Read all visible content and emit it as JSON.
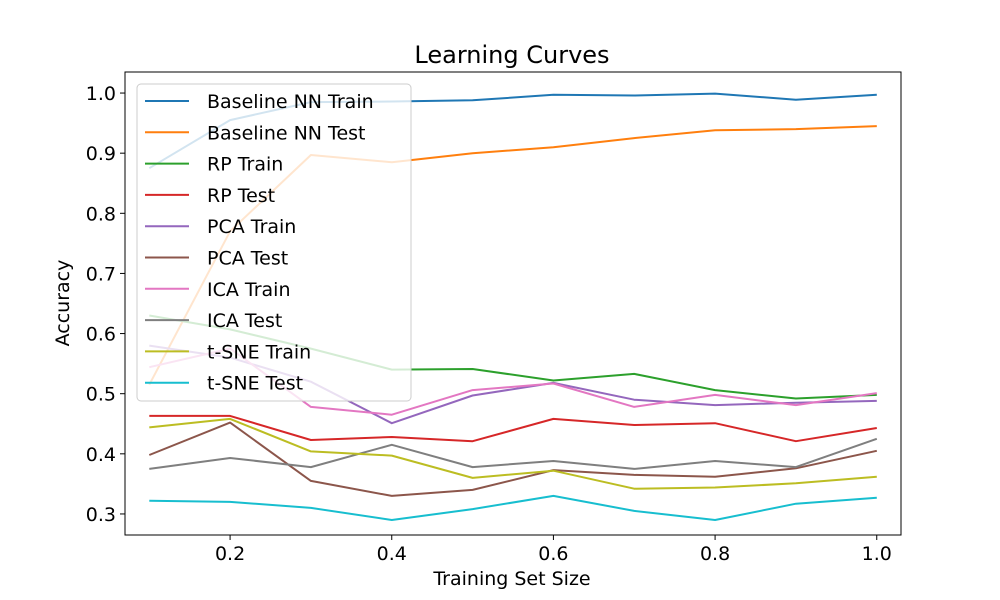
{
  "chart_data": {
    "type": "line",
    "title": "Learning Curves",
    "xlabel": "Training Set Size",
    "ylabel": "Accuracy",
    "xlim": [
      0.07,
      1.03
    ],
    "ylim": [
      0.265,
      1.035
    ],
    "x_ticks": [
      0.2,
      0.4,
      0.6,
      0.8,
      1.0
    ],
    "x_tick_labels": [
      "0.2",
      "0.4",
      "0.6",
      "0.8",
      "1.0"
    ],
    "y_ticks": [
      0.3,
      0.4,
      0.5,
      0.6,
      0.7,
      0.8,
      0.9,
      1.0
    ],
    "y_tick_labels": [
      "0.3",
      "0.4",
      "0.5",
      "0.6",
      "0.7",
      "0.8",
      "0.9",
      "1.0"
    ],
    "grid": false,
    "legend_position": "upper-left",
    "x": [
      0.1,
      0.2,
      0.3,
      0.4,
      0.5,
      0.6,
      0.7,
      0.8,
      0.9,
      1.0
    ],
    "series": [
      {
        "name": "Baseline NN Train",
        "color": "#1f77b4",
        "values": [
          0.875,
          0.955,
          0.985,
          0.986,
          0.988,
          0.997,
          0.996,
          0.999,
          0.989,
          0.997
        ]
      },
      {
        "name": "Baseline NN Test",
        "color": "#ff7f0e",
        "values": [
          0.515,
          0.77,
          0.897,
          0.885,
          0.9,
          0.91,
          0.925,
          0.938,
          0.94,
          0.945
        ]
      },
      {
        "name": "RP Train",
        "color": "#2ca02c",
        "values": [
          0.63,
          0.607,
          0.575,
          0.54,
          0.541,
          0.522,
          0.533,
          0.506,
          0.492,
          0.498
        ]
      },
      {
        "name": "RP Test",
        "color": "#d62728",
        "values": [
          0.463,
          0.463,
          0.423,
          0.428,
          0.421,
          0.458,
          0.448,
          0.451,
          0.421,
          0.443
        ]
      },
      {
        "name": "PCA Train",
        "color": "#9467bd",
        "values": [
          0.58,
          0.56,
          0.52,
          0.451,
          0.497,
          0.518,
          0.49,
          0.481,
          0.485,
          0.488
        ]
      },
      {
        "name": "PCA Test",
        "color": "#8c564b",
        "values": [
          0.398,
          0.452,
          0.355,
          0.33,
          0.34,
          0.373,
          0.365,
          0.362,
          0.376,
          0.405
        ]
      },
      {
        "name": "ICA Train",
        "color": "#e377c2",
        "values": [
          0.544,
          0.575,
          0.478,
          0.465,
          0.506,
          0.517,
          0.478,
          0.498,
          0.481,
          0.501
        ]
      },
      {
        "name": "ICA Test",
        "color": "#7f7f7f",
        "values": [
          0.375,
          0.393,
          0.378,
          0.415,
          0.378,
          0.388,
          0.375,
          0.388,
          0.378,
          0.425
        ]
      },
      {
        "name": "t-SNE Train",
        "color": "#bcbd22",
        "values": [
          0.444,
          0.458,
          0.404,
          0.397,
          0.36,
          0.372,
          0.342,
          0.344,
          0.351,
          0.362
        ]
      },
      {
        "name": "t-SNE Test",
        "color": "#17becf",
        "values": [
          0.322,
          0.32,
          0.31,
          0.29,
          0.308,
          0.33,
          0.305,
          0.29,
          0.317,
          0.327
        ]
      }
    ]
  }
}
